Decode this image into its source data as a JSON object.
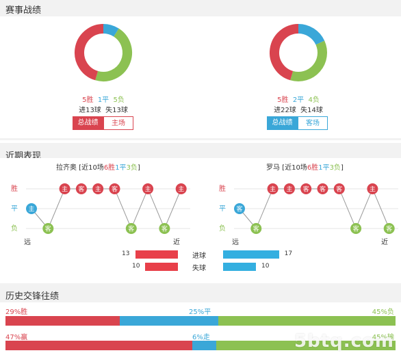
{
  "colors": {
    "win": "#d9444f",
    "draw": "#3aa7d8",
    "loss": "#8cc152",
    "win_bar": "#e8404a",
    "draw_bar": "#34afe0"
  },
  "record": {
    "title": "赛事战绩",
    "left": {
      "win_label": "5胜",
      "draw_label": "1平",
      "loss_label": "5负",
      "goals_for": "进13球",
      "goals_against": "失13球",
      "btn_overall": "总战绩",
      "btn_venue": "主场",
      "donut": {
        "win": 5,
        "draw": 1,
        "loss": 5
      }
    },
    "right": {
      "win_label": "5胜",
      "draw_label": "2平",
      "loss_label": "4负",
      "goals_for": "进22球",
      "goals_against": "失14球",
      "btn_overall": "总战绩",
      "btn_venue": "客场",
      "donut": {
        "win": 5,
        "draw": 2,
        "loss": 4
      }
    }
  },
  "recent": {
    "title": "近期表现",
    "axis": {
      "win": "胜",
      "draw": "平",
      "loss": "负",
      "far": "远",
      "near": "近"
    },
    "left": {
      "team": "拉齐奥",
      "prefix": " [近10场",
      "w": "6胜",
      "d": "1平",
      "l": "3负",
      "suffix": "]",
      "results": [
        [
          "平",
          "主"
        ],
        [
          "负",
          "客"
        ],
        [
          "胜",
          "主"
        ],
        [
          "胜",
          "客"
        ],
        [
          "胜",
          "主"
        ],
        [
          "胜",
          "客"
        ],
        [
          "负",
          "客"
        ],
        [
          "胜",
          "主"
        ],
        [
          "负",
          "客"
        ],
        [
          "胜",
          "主"
        ]
      ]
    },
    "right": {
      "team": "罗马",
      "prefix": " [近10场",
      "w": "6胜",
      "d": "1平",
      "l": "3负",
      "suffix": "]",
      "results": [
        [
          "平",
          "客"
        ],
        [
          "负",
          "客"
        ],
        [
          "胜",
          "主"
        ],
        [
          "胜",
          "主"
        ],
        [
          "胜",
          "客"
        ],
        [
          "胜",
          "客"
        ],
        [
          "胜",
          "客"
        ],
        [
          "负",
          "客"
        ],
        [
          "胜",
          "主"
        ],
        [
          "负",
          "客"
        ]
      ]
    },
    "goals": {
      "label_for": "进球",
      "label_against": "失球",
      "left_for": 13,
      "left_against": 10,
      "right_for": 17,
      "right_against": 10
    }
  },
  "history": {
    "title": "历史交锋往绩",
    "row1": {
      "left": "29%胜",
      "mid": "25%平",
      "right": "45%负",
      "win": 29,
      "draw": 25,
      "loss": 45
    },
    "row2": {
      "left": "47%赢",
      "mid": "6%走",
      "right": "45%输",
      "win": 47,
      "draw": 6,
      "loss": 45
    }
  },
  "watermark": "5btq.com"
}
